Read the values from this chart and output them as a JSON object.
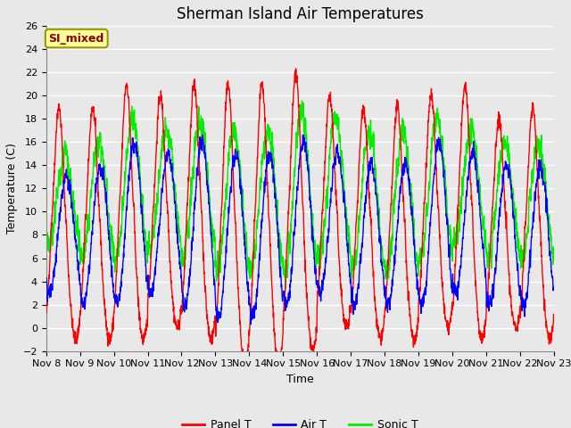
{
  "title": "Sherman Island Air Temperatures",
  "xlabel": "Time",
  "ylabel": "Temperature (C)",
  "ylim": [
    -2,
    26
  ],
  "yticks": [
    -2,
    0,
    2,
    4,
    6,
    8,
    10,
    12,
    14,
    16,
    18,
    20,
    22,
    24,
    26
  ],
  "x_labels": [
    "Nov 8",
    "Nov 9",
    "Nov 10",
    "Nov 11",
    "Nov 12",
    "Nov 13",
    "Nov 14",
    "Nov 15",
    "Nov 16",
    "Nov 17",
    "Nov 18",
    "Nov 19",
    "Nov 20",
    "Nov 21",
    "Nov 22",
    "Nov 23"
  ],
  "label_box_text": "SI_mixed",
  "label_box_facecolor": "#FFFF99",
  "label_box_edgecolor": "#999900",
  "label_box_text_color": "#880000",
  "background_color": "#E8E8E8",
  "plot_bg_color": "#E8E8E8",
  "grid_color": "#FFFFFF",
  "colors": {
    "panel_t": "#FF0000",
    "air_t": "#0000FF",
    "sonic_t": "#00EE00"
  },
  "legend_labels": [
    "Panel T",
    "Air T",
    "Sonic T"
  ],
  "title_fontsize": 12,
  "axis_fontsize": 9,
  "tick_fontsize": 8,
  "linewidth": 1.0
}
